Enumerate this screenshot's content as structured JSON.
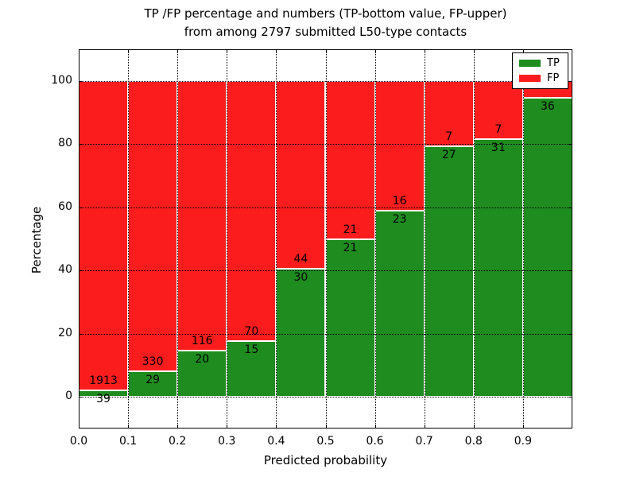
{
  "chart_data": {
    "type": "bar",
    "subtype": "stacked-percentage-histogram",
    "title_line1": "TP /FP percentage and numbers (TP-bottom value, FP-upper)",
    "title_line2": "from among 2797 submitted L50-type contacts",
    "xlabel": "Predicted probability",
    "ylabel": "Percentage",
    "total_submitted_contacts": 2797,
    "xlim": [
      0.0,
      1.0
    ],
    "ylim": [
      -10,
      110
    ],
    "bin_width": 0.1,
    "x_tick_labels": [
      "0.0",
      "0.1",
      "0.2",
      "0.3",
      "0.4",
      "0.5",
      "0.6",
      "0.7",
      "0.8",
      "0.9"
    ],
    "y_ticks": [
      0,
      20,
      40,
      60,
      80,
      100
    ],
    "grid_style": "dotted",
    "legend_position": "upper right",
    "legend": [
      {
        "label": "TP",
        "color": "#1e8c1e"
      },
      {
        "label": "FP",
        "color": "#fb1d1d"
      }
    ],
    "bars": [
      {
        "bin": "0.0-0.1",
        "tp_label": "39",
        "fp_label": "1913",
        "tp_pct": 2.0
      },
      {
        "bin": "0.1-0.2",
        "tp_label": "29",
        "fp_label": "330",
        "tp_pct": 8.08
      },
      {
        "bin": "0.2-0.3",
        "tp_label": "20",
        "fp_label": "116",
        "tp_pct": 14.71
      },
      {
        "bin": "0.3-0.4",
        "tp_label": "15",
        "fp_label": "70",
        "tp_pct": 17.65
      },
      {
        "bin": "0.4-0.5",
        "tp_label": "30",
        "fp_label": "44",
        "tp_pct": 40.54
      },
      {
        "bin": "0.5-0.6",
        "tp_label": "21",
        "fp_label": "21",
        "tp_pct": 50.0
      },
      {
        "bin": "0.6-0.7",
        "tp_label": "23",
        "fp_label": "16",
        "tp_pct": 58.97
      },
      {
        "bin": "0.7-0.8",
        "tp_label": "27",
        "fp_label": "7",
        "tp_pct": 79.41
      },
      {
        "bin": "0.8-0.9",
        "tp_label": "31",
        "fp_label": "7",
        "tp_pct": 81.58
      },
      {
        "bin": "0.9-1.0",
        "tp_label": "36",
        "fp_label": "",
        "tp_pct": 94.74
      }
    ]
  },
  "colors": {
    "bar_edge": "#ffffff",
    "grid_and_axis": "#000000",
    "background": "#ffffff",
    "text": "#000000"
  }
}
